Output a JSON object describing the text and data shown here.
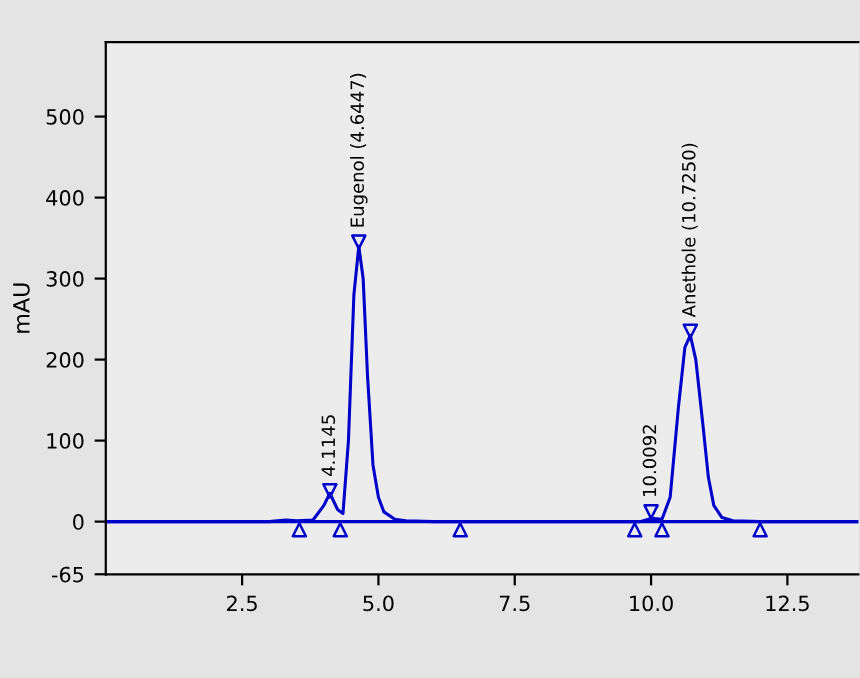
{
  "chart_data": {
    "type": "line",
    "ylabel": "mAU",
    "xlim": [
      0,
      13.8
    ],
    "ylim": [
      -65,
      592
    ],
    "xticks": [
      2.5,
      {
        "value": 5,
        "label": "5.0"
      },
      7.5,
      {
        "value": 10,
        "label": "10.0"
      },
      12.5
    ],
    "yticks": [
      -65,
      0,
      100,
      200,
      300,
      400,
      500
    ],
    "grid": false,
    "legend": false,
    "series": [
      {
        "color": "#0000cc",
        "marker": "none",
        "x": [
          0,
          3.0,
          3.3,
          3.5,
          3.8,
          4.0,
          4.11,
          4.25,
          4.35,
          4.45,
          4.55,
          4.64,
          4.72,
          4.8,
          4.9,
          5.0,
          5.1,
          5.3,
          5.5,
          6.0,
          9.8,
          10.0,
          10.2,
          10.35,
          10.5,
          10.62,
          10.72,
          10.82,
          10.95,
          11.05,
          11.15,
          11.3,
          11.5,
          12.0,
          13.8
        ],
        "values": [
          0,
          0,
          2,
          1,
          2,
          20,
          35,
          15,
          10,
          100,
          280,
          340,
          300,
          180,
          70,
          30,
          12,
          3,
          1,
          0,
          0,
          4,
          3,
          30,
          140,
          215,
          230,
          200,
          120,
          55,
          20,
          5,
          1,
          0,
          0
        ]
      },
      {
        "type": "scatter",
        "color": "#0000cc",
        "marker": "triangle_up",
        "x": [
          3.55,
          4.3,
          6.5,
          9.7,
          10.2,
          12.0
        ],
        "values": [
          -10,
          -10,
          -10,
          -10,
          -10,
          -10
        ]
      },
      {
        "type": "scatter",
        "color": "#0000cc",
        "marker": "triangle_down",
        "x": [
          4.11,
          4.64,
          10.0,
          10.72
        ],
        "values": [
          38,
          345,
          12,
          235
        ]
      }
    ],
    "ref_lines": [
      {
        "axis": "y",
        "value": 0,
        "label": null,
        "color": "#0000cc"
      }
    ],
    "annotations": [
      {
        "text": "4.1145",
        "x": 4.11,
        "y": 38
      },
      {
        "text": "Eugenol (4.6447)",
        "x": 4.64,
        "y": 345
      },
      {
        "text": "10.0092",
        "x": 10.0,
        "y": 12
      },
      {
        "text": "Anethole (10.7250)",
        "x": 10.72,
        "y": 235
      }
    ]
  }
}
